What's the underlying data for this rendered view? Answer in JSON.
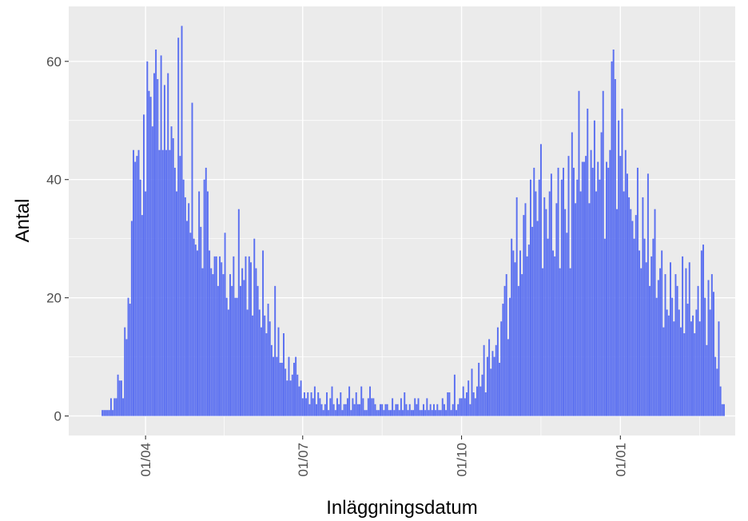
{
  "chart_data": {
    "type": "bar",
    "x_label": "Inläggningsdatum",
    "y_label": "Antal",
    "color": "#5a6ff0",
    "ylim": [
      -3.3,
      69.3
    ],
    "yticks": [
      0,
      20,
      40,
      60
    ],
    "xticks": [
      "01/04",
      "01/07",
      "01/10",
      "01/01"
    ],
    "grid": true,
    "x": [
      "07/03",
      "08/03",
      "09/03",
      "10/03",
      "11/03",
      "12/03",
      "13/03",
      "14/03",
      "15/03",
      "16/03",
      "17/03",
      "18/03",
      "19/03",
      "20/03",
      "21/03",
      "22/03",
      "23/03",
      "24/03",
      "25/03",
      "26/03",
      "27/03",
      "28/03",
      "29/03",
      "30/03",
      "31/03",
      "01/04",
      "02/04",
      "03/04",
      "04/04",
      "05/04",
      "06/04",
      "07/04",
      "08/04",
      "09/04",
      "10/04",
      "11/04",
      "12/04",
      "13/04",
      "14/04",
      "15/04",
      "16/04",
      "17/04",
      "18/04",
      "19/04",
      "20/04",
      "21/04",
      "22/04",
      "23/04",
      "24/04",
      "25/04",
      "26/04",
      "27/04",
      "28/04",
      "29/04",
      "30/04",
      "01/05",
      "02/05",
      "03/05",
      "04/05",
      "05/05",
      "06/05",
      "07/05",
      "08/05",
      "09/05",
      "10/05",
      "11/05",
      "12/05",
      "13/05",
      "14/05",
      "15/05",
      "16/05",
      "17/05",
      "18/05",
      "19/05",
      "20/05",
      "21/05",
      "22/05",
      "23/05",
      "24/05",
      "25/05",
      "26/05",
      "27/05",
      "28/05",
      "29/05",
      "30/05",
      "31/05",
      "01/06",
      "02/06",
      "03/06",
      "04/06",
      "05/06",
      "06/06",
      "07/06",
      "08/06",
      "09/06",
      "10/06",
      "11/06",
      "12/06",
      "13/06",
      "14/06",
      "15/06",
      "16/06",
      "17/06",
      "18/06",
      "19/06",
      "20/06",
      "21/06",
      "22/06",
      "23/06",
      "24/06",
      "25/06",
      "26/06",
      "27/06",
      "28/06",
      "29/06",
      "30/06",
      "01/07",
      "02/07",
      "03/07",
      "04/07",
      "05/07",
      "06/07",
      "07/07",
      "08/07",
      "09/07",
      "10/07",
      "11/07",
      "12/07",
      "13/07",
      "14/07",
      "15/07",
      "16/07",
      "17/07",
      "18/07",
      "19/07",
      "20/07",
      "21/07",
      "22/07",
      "23/07",
      "24/07",
      "25/07",
      "26/07",
      "27/07",
      "28/07",
      "29/07",
      "30/07",
      "31/07",
      "01/08",
      "02/08",
      "03/08",
      "04/08",
      "05/08",
      "06/08",
      "07/08",
      "08/08",
      "09/08",
      "10/08",
      "11/08",
      "12/08",
      "13/08",
      "14/08",
      "15/08",
      "16/08",
      "17/08",
      "18/08",
      "19/08",
      "20/08",
      "21/08",
      "22/08",
      "23/08",
      "24/08",
      "25/08",
      "26/08",
      "27/08",
      "28/08",
      "29/08",
      "30/08",
      "31/08",
      "01/09",
      "02/09",
      "03/09",
      "04/09",
      "05/09",
      "06/09",
      "07/09",
      "08/09",
      "09/09",
      "10/09",
      "11/09",
      "12/09",
      "13/09",
      "14/09",
      "15/09",
      "16/09",
      "17/09",
      "18/09",
      "19/09",
      "20/09",
      "21/09",
      "22/09",
      "23/09",
      "24/09",
      "25/09",
      "26/09",
      "27/09",
      "28/09",
      "29/09",
      "30/09",
      "01/10",
      "02/10",
      "03/10",
      "04/10",
      "05/10",
      "06/10",
      "07/10",
      "08/10",
      "09/10",
      "10/10",
      "11/10",
      "12/10",
      "13/10",
      "14/10",
      "15/10",
      "16/10",
      "17/10",
      "18/10",
      "19/10",
      "20/10",
      "21/10",
      "22/10",
      "23/10",
      "24/10",
      "25/10",
      "26/10",
      "27/10",
      "28/10",
      "29/10",
      "30/10",
      "31/10",
      "01/11",
      "02/11",
      "03/11",
      "04/11",
      "05/11",
      "06/11",
      "07/11",
      "08/11",
      "09/11",
      "10/11",
      "11/11",
      "12/11",
      "13/11",
      "14/11",
      "15/11",
      "16/11",
      "17/11",
      "18/11",
      "19/11",
      "20/11",
      "21/11",
      "22/11",
      "23/11",
      "24/11",
      "25/11",
      "26/11",
      "27/11",
      "28/11",
      "29/11",
      "30/11",
      "01/12",
      "02/12",
      "03/12",
      "04/12",
      "05/12",
      "06/12",
      "07/12",
      "08/12",
      "09/12",
      "10/12",
      "11/12",
      "12/12",
      "13/12",
      "14/12",
      "15/12",
      "16/12",
      "17/12",
      "18/12",
      "19/12",
      "20/12",
      "21/12",
      "22/12",
      "23/12",
      "24/12",
      "25/12",
      "26/12",
      "27/12",
      "28/12",
      "29/12",
      "30/12",
      "31/12",
      "01/01",
      "02/01",
      "03/01",
      "04/01",
      "05/01",
      "06/01",
      "07/01",
      "08/01",
      "09/01",
      "10/01",
      "11/01",
      "12/01",
      "13/01",
      "14/01",
      "15/01",
      "16/01",
      "17/01",
      "18/01",
      "19/01",
      "20/01",
      "21/01",
      "22/01",
      "23/01",
      "24/01",
      "25/01",
      "26/01",
      "27/01",
      "28/01",
      "29/01",
      "30/01",
      "31/01",
      "01/02",
      "02/02",
      "03/02",
      "04/02",
      "05/02",
      "06/02",
      "07/02",
      "08/02",
      "09/02",
      "10/02",
      "11/02",
      "12/02",
      "13/02",
      "14/02",
      "15/02",
      "16/02",
      "17/02",
      "18/02",
      "19/02",
      "20/02",
      "21/02",
      "22/02",
      "23/02",
      "24/02",
      "25/02",
      "26/02",
      "27/02",
      "28/02",
      "01/03",
      "02/03"
    ],
    "values": [
      1,
      1,
      1,
      1,
      1,
      3,
      1,
      3,
      3,
      7,
      6,
      6,
      3,
      15,
      13,
      20,
      19,
      33,
      45,
      43,
      44,
      45,
      40,
      34,
      51,
      38,
      60,
      55,
      54,
      49,
      58,
      62,
      57,
      45,
      61,
      45,
      56,
      45,
      58,
      45,
      49,
      47,
      42,
      38,
      64,
      44,
      66,
      40,
      37,
      33,
      36,
      31,
      53,
      30,
      29,
      28,
      38,
      32,
      25,
      40,
      42,
      38,
      28,
      25,
      24,
      27,
      27,
      22,
      27,
      26,
      24,
      31,
      20,
      18,
      24,
      22,
      27,
      20,
      20,
      35,
      22,
      25,
      23,
      27,
      18,
      27,
      26,
      17,
      30,
      25,
      22,
      18,
      15,
      28,
      17,
      14,
      19,
      16,
      12,
      10,
      22,
      10,
      15,
      9,
      9,
      14,
      8,
      6,
      10,
      6,
      7,
      9,
      10,
      7,
      5,
      6,
      3,
      4,
      3,
      4,
      2,
      4,
      3,
      5,
      2,
      4,
      3,
      2,
      1,
      2,
      4,
      1,
      3,
      5,
      2,
      1,
      3,
      2,
      4,
      1,
      2,
      2,
      3,
      5,
      1,
      3,
      2,
      4,
      2,
      2,
      5,
      3,
      1,
      1,
      3,
      5,
      3,
      3,
      2,
      1,
      1,
      2,
      2,
      1,
      2,
      2,
      1,
      1,
      3,
      1,
      2,
      2,
      1,
      3,
      1,
      4,
      2,
      1,
      2,
      1,
      1,
      3,
      2,
      3,
      1,
      1,
      2,
      1,
      3,
      1,
      2,
      1,
      2,
      1,
      2,
      1,
      1,
      3,
      2,
      1,
      4,
      4,
      1,
      2,
      7,
      1,
      2,
      3,
      3,
      5,
      3,
      4,
      6,
      2,
      8,
      4,
      3,
      5,
      9,
      5,
      7,
      12,
      4,
      10,
      13,
      8,
      11,
      10,
      12,
      15,
      9,
      16,
      19,
      22,
      24,
      13,
      20,
      30,
      28,
      26,
      37,
      22,
      28,
      24,
      34,
      36,
      27,
      29,
      40,
      32,
      42,
      38,
      33,
      40,
      46,
      25,
      37,
      35,
      30,
      38,
      41,
      28,
      27,
      36,
      42,
      25,
      40,
      42,
      35,
      31,
      44,
      25,
      48,
      42,
      36,
      40,
      55,
      38,
      43,
      43,
      44,
      52,
      36,
      45,
      42,
      50,
      38,
      43,
      40,
      48,
      55,
      30,
      43,
      42,
      45,
      60,
      62,
      57,
      35,
      50,
      44,
      52,
      38,
      45,
      41,
      37,
      35,
      33,
      30,
      34,
      42,
      28,
      25,
      37,
      30,
      26,
      41,
      22,
      27,
      30,
      35,
      20,
      23,
      25,
      28,
      15,
      24,
      18,
      17,
      26,
      20,
      16,
      24,
      22,
      18,
      15,
      27,
      14,
      25,
      19,
      26,
      16,
      17,
      14,
      18,
      22,
      16,
      28,
      29,
      20,
      12,
      23,
      18,
      24,
      21,
      10,
      8,
      16,
      5,
      2,
      2
    ]
  }
}
